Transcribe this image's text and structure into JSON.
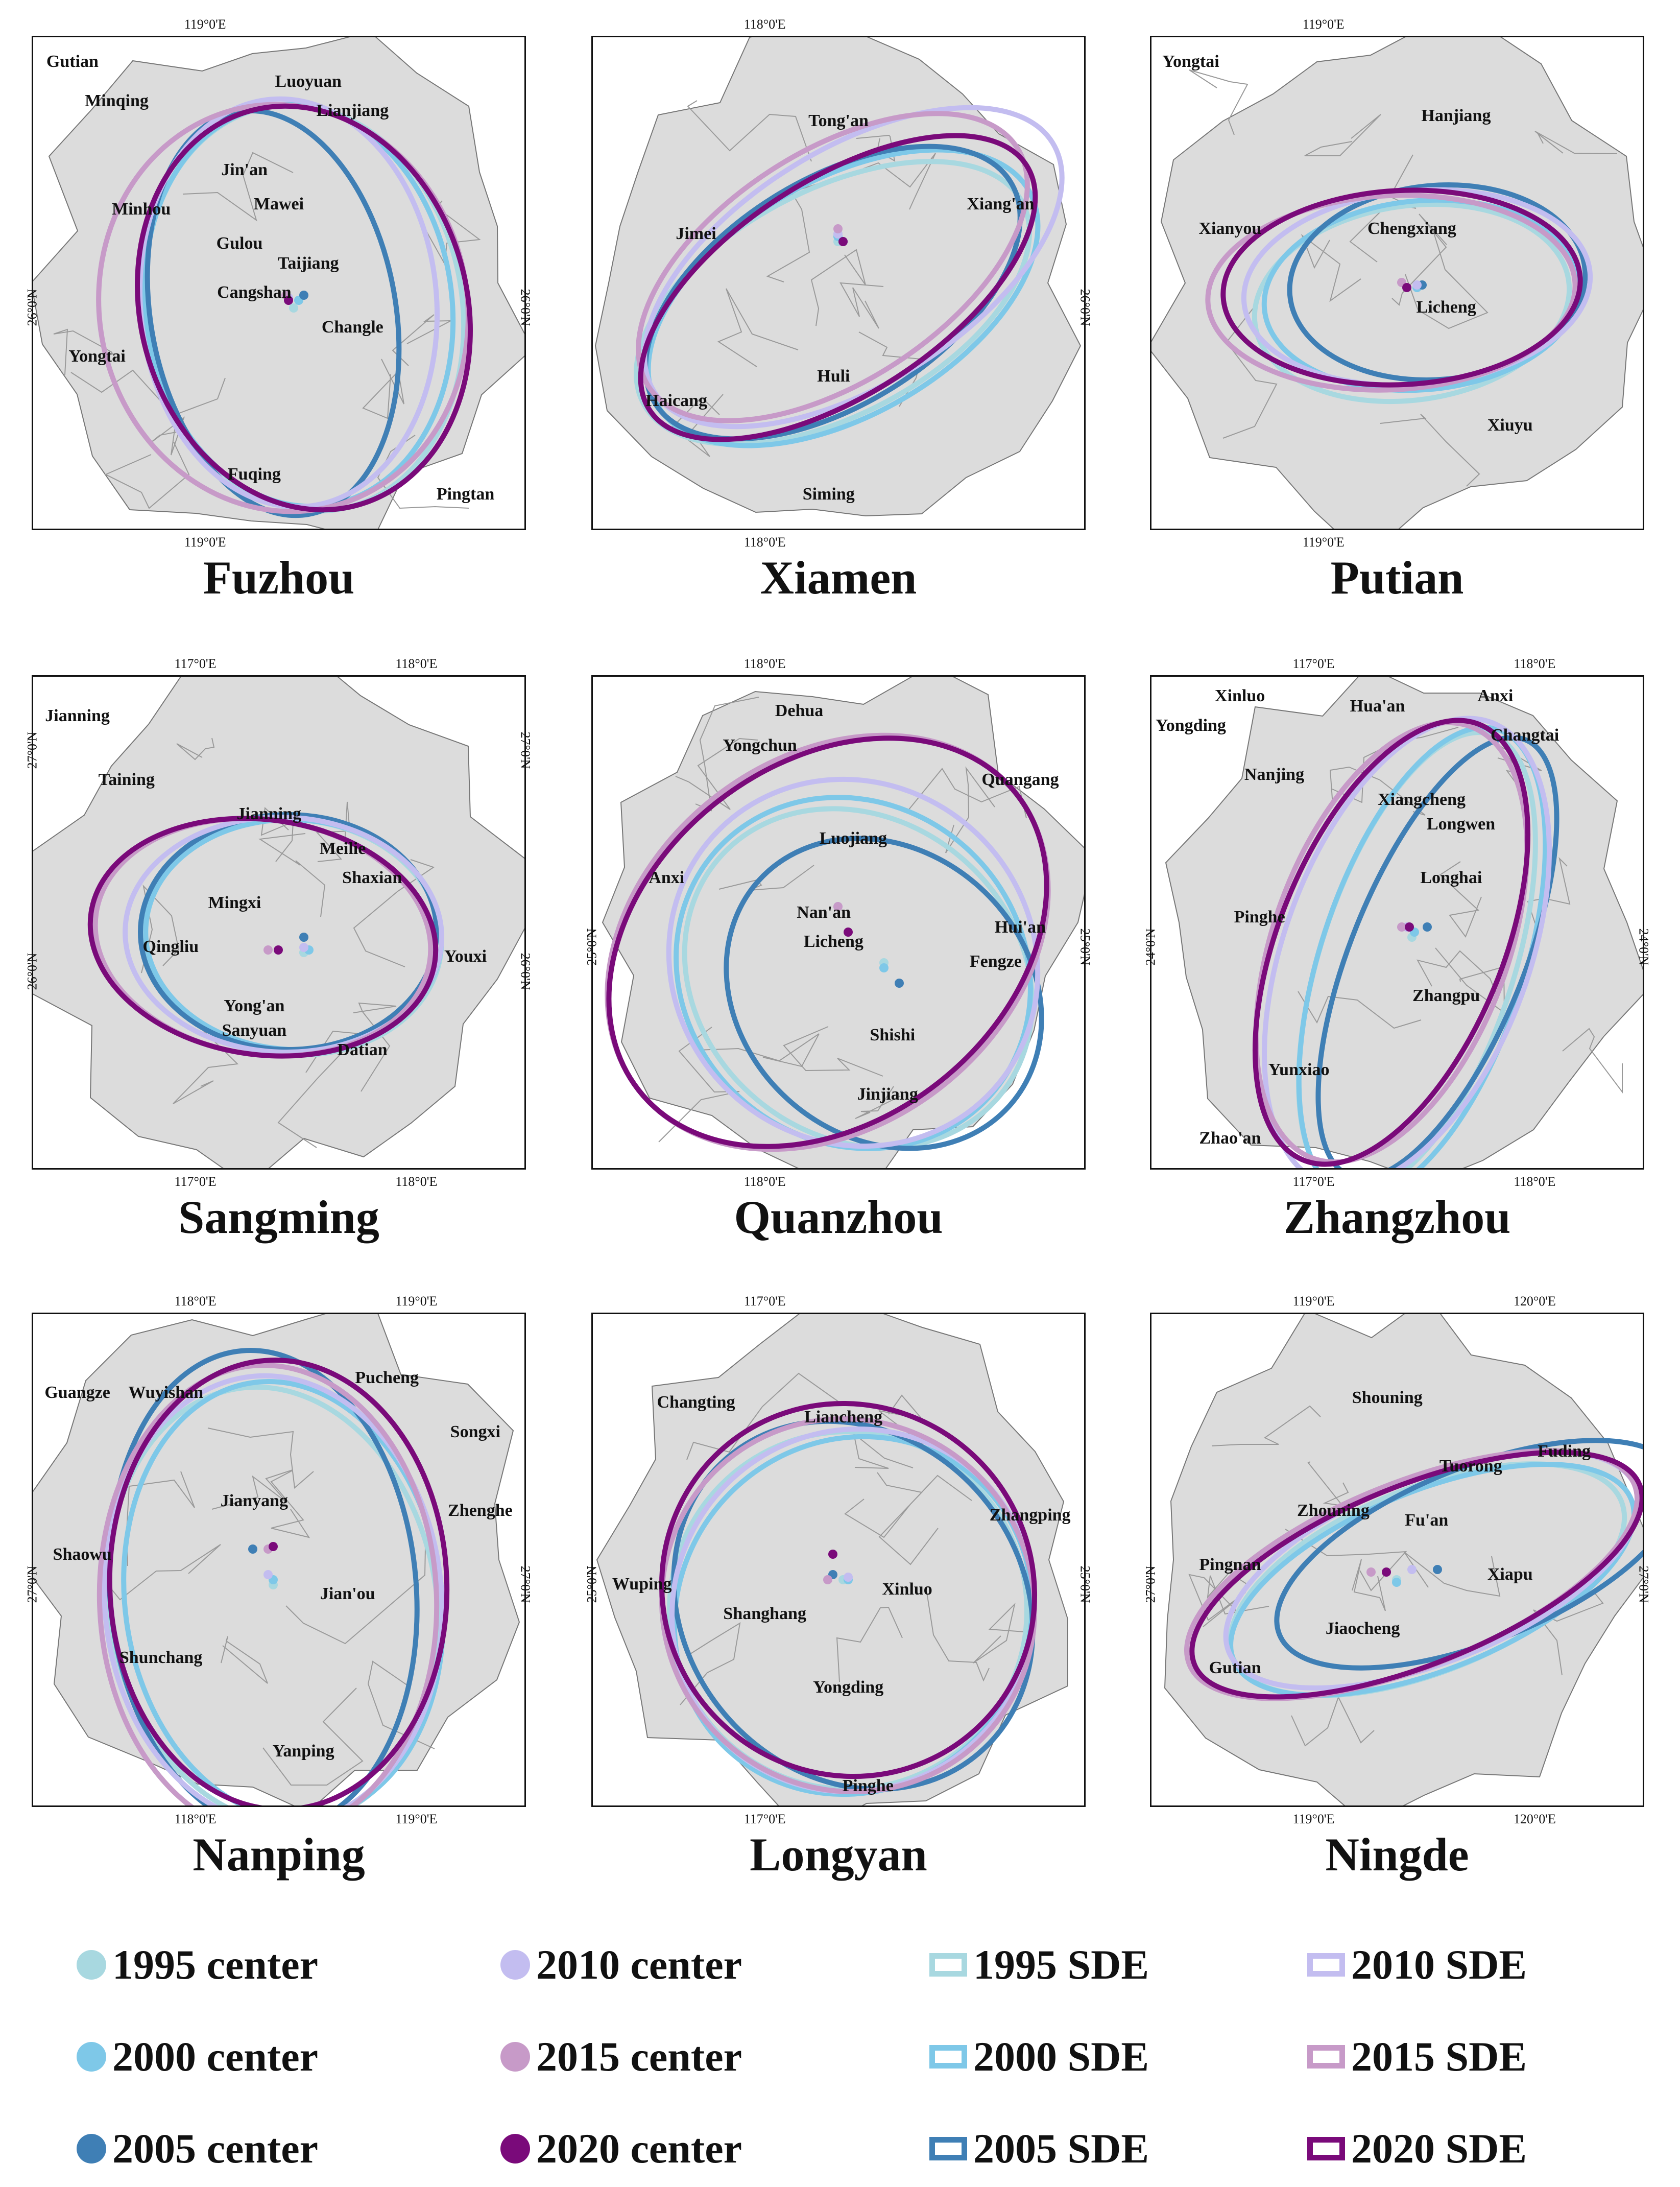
{
  "colors": {
    "1995": "#a8d8e0",
    "2000": "#7ec8e8",
    "2005": "#3f7fb5",
    "2010": "#c3bdf0",
    "2015": "#c79ac8",
    "2020": "#7a0a7a",
    "land": "#dcdcdc",
    "border": "#777777"
  },
  "panels": [
    {
      "title": "Fuzhou",
      "ticks": {
        "top": [
          "119°0'E"
        ],
        "bottom": [
          "119°0'E"
        ],
        "left": [
          "26°0'N"
        ],
        "right": [
          "26°0'N"
        ]
      },
      "places": [
        "Gutian",
        "Minqing",
        "Luoyuan",
        "Lianjiang",
        "Jin'an",
        "Mawei",
        "Minhou",
        "Gulou",
        "Taijiang",
        "Cangshan",
        "Changle",
        "Yongtai",
        "Fuqing",
        "Pingtan"
      ]
    },
    {
      "title": "Xiamen",
      "ticks": {
        "top": [
          "118°0'E"
        ],
        "bottom": [
          "118°0'E"
        ],
        "left": [],
        "right": [
          "26°0'N"
        ]
      },
      "places": [
        "Tong'an",
        "Xiang'an",
        "Jimei",
        "Huli",
        "Haicang",
        "Siming"
      ]
    },
    {
      "title": "Putian",
      "ticks": {
        "top": [
          "119°0'E"
        ],
        "bottom": [
          "119°0'E"
        ],
        "left": [],
        "right": []
      },
      "places": [
        "Yongtai",
        "Hanjiang",
        "Xianyou",
        "Chengxiang",
        "Licheng",
        "Xiuyu"
      ]
    },
    {
      "title": "Sangming",
      "ticks": {
        "top": [
          "117°0'E",
          "118°0'E"
        ],
        "bottom": [
          "117°0'E",
          "118°0'E"
        ],
        "left": [
          "27°0'N",
          "26°0'N"
        ],
        "right": [
          "27°0'N",
          "26°0'N"
        ]
      },
      "places": [
        "Jianning",
        "Taining",
        "Jianning",
        "Meilie",
        "Shaxian",
        "Mingxi",
        "Qingliu",
        "Youxi",
        "Yong'an",
        "Sanyuan",
        "Datian"
      ]
    },
    {
      "title": "Quanzhou",
      "ticks": {
        "top": [
          "118°0'E"
        ],
        "bottom": [
          "118°0'E"
        ],
        "left": [
          "25°0'N"
        ],
        "right": [
          "25°0'N"
        ]
      },
      "places": [
        "Dehua",
        "Yongchun",
        "Quangang",
        "Anxi",
        "Luojiang",
        "Nan'an",
        "Licheng",
        "Hui'an",
        "Fengze",
        "Shishi",
        "Jinjiang"
      ]
    },
    {
      "title": "Zhangzhou",
      "ticks": {
        "top": [
          "117°0'E",
          "118°0'E"
        ],
        "bottom": [
          "117°0'E",
          "118°0'E"
        ],
        "left": [
          "24°0'N"
        ],
        "right": [
          "24°0'N"
        ]
      },
      "places": [
        "Xinluo",
        "Hua'an",
        "Anxi",
        "Yongding",
        "Changtai",
        "Nanjing",
        "Xiangcheng",
        "Longwen",
        "Longhai",
        "Pinghe",
        "Zhangpu",
        "Yunxiao",
        "Zhao'an"
      ]
    },
    {
      "title": "Nanping",
      "ticks": {
        "top": [
          "118°0'E",
          "119°0'E"
        ],
        "bottom": [
          "118°0'E",
          "119°0'E"
        ],
        "left": [
          "27°0'N"
        ],
        "right": [
          "27°0'N"
        ]
      },
      "places": [
        "Pucheng",
        "Guangze",
        "Wuyishan",
        "Songxi",
        "Zhenghe",
        "Jianyang",
        "Shaowu",
        "Jian'ou",
        "Shunchang",
        "Yanping"
      ]
    },
    {
      "title": "Longyan",
      "ticks": {
        "top": [
          "117°0'E"
        ],
        "bottom": [
          "117°0'E"
        ],
        "left": [
          "25°0'N"
        ],
        "right": [
          "25°0'N"
        ]
      },
      "places": [
        "Changting",
        "Liancheng",
        "Zhangping",
        "Wuping",
        "Xinluo",
        "Shanghang",
        "Yongding",
        "Pinghe"
      ]
    },
    {
      "title": "Ningde",
      "ticks": {
        "top": [
          "119°0'E",
          "120°0'E"
        ],
        "bottom": [
          "119°0'E",
          "120°0'E"
        ],
        "left": [
          "27°0'N"
        ],
        "right": [
          "27°0'N"
        ]
      },
      "places": [
        "Shouning",
        "Fuding",
        "Tuorong",
        "Zhouning",
        "Fu'an",
        "Pingnan",
        "Xiapu",
        "Jiaocheng",
        "Gutian"
      ]
    }
  ],
  "legend": [
    {
      "label": "1995 center",
      "kind": "center",
      "year": "1995"
    },
    {
      "label": "2010 center",
      "kind": "center",
      "year": "2010"
    },
    {
      "label": "1995 SDE",
      "kind": "sde",
      "year": "1995"
    },
    {
      "label": "2010 SDE",
      "kind": "sde",
      "year": "2010"
    },
    {
      "label": "2000 center",
      "kind": "center",
      "year": "2000"
    },
    {
      "label": "2015 center",
      "kind": "center",
      "year": "2015"
    },
    {
      "label": "2000 SDE",
      "kind": "sde",
      "year": "2000"
    },
    {
      "label": "2015 SDE",
      "kind": "sde",
      "year": "2015"
    },
    {
      "label": "2005 center",
      "kind": "center",
      "year": "2005"
    },
    {
      "label": "2020 center",
      "kind": "center",
      "year": "2020"
    },
    {
      "label": "2005 SDE",
      "kind": "sde",
      "year": "2005"
    },
    {
      "label": "2020 SDE",
      "kind": "sde",
      "year": "2020"
    }
  ]
}
